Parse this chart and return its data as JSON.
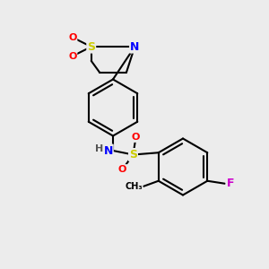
{
  "bg_color": "#ececec",
  "bond_color": "#000000",
  "bond_width": 1.5,
  "atom_colors": {
    "S": "#cccc00",
    "N": "#0000ff",
    "O": "#ff0000",
    "F": "#cc00cc",
    "C": "#000000",
    "H": "#555555"
  },
  "font_size": 9
}
